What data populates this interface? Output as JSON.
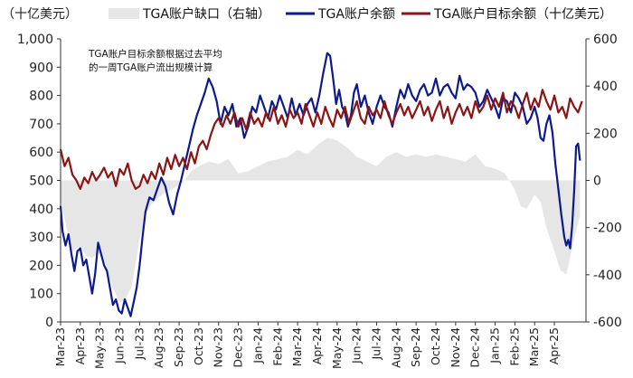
{
  "chart_data": {
    "type": "line",
    "left_axis_unit": "（十亿美元）",
    "ylim_left": [
      0,
      1000
    ],
    "yticks_left": [
      0,
      100,
      200,
      300,
      400,
      500,
      600,
      700,
      800,
      900,
      1000
    ],
    "yticks_left_labels": [
      "0",
      "100",
      "200",
      "300",
      "400",
      "500",
      "600",
      "700",
      "800",
      "900",
      "1,000"
    ],
    "ylim_right": [
      -600,
      600
    ],
    "yticks_right": [
      -600,
      -400,
      -200,
      0,
      200,
      400,
      600
    ],
    "yticks_right_labels": [
      "-600",
      "-400",
      "-200",
      "0",
      "200",
      "400",
      "600"
    ],
    "x_range_month_index": [
      0,
      26.6
    ],
    "x_ticks": [
      {
        "label": "Mar-23",
        "m": 0
      },
      {
        "label": "Apr-23",
        "m": 1
      },
      {
        "label": "May-23",
        "m": 2
      },
      {
        "label": "Jun-23",
        "m": 3
      },
      {
        "label": "Jul-23",
        "m": 4
      },
      {
        "label": "Aug-23",
        "m": 5
      },
      {
        "label": "Sep-23",
        "m": 6
      },
      {
        "label": "Oct-23",
        "m": 7
      },
      {
        "label": "Nov-23",
        "m": 8
      },
      {
        "label": "Dec-23",
        "m": 9
      },
      {
        "label": "Jan-24",
        "m": 10
      },
      {
        "label": "Feb-24",
        "m": 11
      },
      {
        "label": "Mar-24",
        "m": 12
      },
      {
        "label": "Apr-24",
        "m": 13
      },
      {
        "label": "May-24",
        "m": 14
      },
      {
        "label": "Jun-24",
        "m": 15
      },
      {
        "label": "Jul-24",
        "m": 16
      },
      {
        "label": "Aug-24",
        "m": 17
      },
      {
        "label": "Sep-24",
        "m": 18
      },
      {
        "label": "Oct-24",
        "m": 19
      },
      {
        "label": "Nov-24",
        "m": 20
      },
      {
        "label": "Dec-24",
        "m": 21
      },
      {
        "label": "Jan-25",
        "m": 22
      },
      {
        "label": "Feb-25",
        "m": 23
      },
      {
        "label": "Mar-25",
        "m": 24
      },
      {
        "label": "Apr-25",
        "m": 25
      }
    ],
    "annotation": [
      "TGA账户目标余额根据过去平均",
      "的一周TGA账户流出规模计算"
    ],
    "series": [
      {
        "name": "TGA账户缺口（右轴）",
        "type": "area",
        "axis": "right",
        "color": "#e6e6e6",
        "x": [
          0,
          0.3,
          0.6,
          1.0,
          1.3,
          1.6,
          2.0,
          2.3,
          2.6,
          3.0,
          3.3,
          3.6,
          4.0,
          4.3,
          4.6,
          5.0,
          5.3,
          5.6,
          6.0,
          6.3,
          6.6,
          7.0,
          7.5,
          8.0,
          8.5,
          9.0,
          9.5,
          10.0,
          10.5,
          11.0,
          11.5,
          12.0,
          12.5,
          13.0,
          13.5,
          14.0,
          14.5,
          15.0,
          15.5,
          16.0,
          16.5,
          17.0,
          17.5,
          18.0,
          18.5,
          19.0,
          19.5,
          20.0,
          20.5,
          21.0,
          21.5,
          22.0,
          22.5,
          23.0,
          23.3,
          23.6,
          24.0,
          24.3,
          24.6,
          25.0,
          25.3,
          25.6,
          26.0,
          26.3
        ],
        "values": [
          -80,
          -200,
          -300,
          -280,
          -320,
          -330,
          -300,
          -360,
          -450,
          -520,
          -500,
          -450,
          -250,
          -150,
          -100,
          -70,
          -50,
          -40,
          -20,
          0,
          40,
          60,
          80,
          70,
          90,
          30,
          40,
          60,
          80,
          90,
          100,
          130,
          110,
          150,
          180,
          170,
          140,
          100,
          80,
          60,
          100,
          120,
          100,
          110,
          100,
          110,
          100,
          90,
          80,
          110,
          60,
          50,
          30,
          -40,
          -110,
          -120,
          -60,
          -90,
          -200,
          -300,
          -380,
          -400,
          -250,
          -150
        ]
      },
      {
        "name": "TGA账户余额",
        "type": "line",
        "axis": "left",
        "color": "#0d1a8e",
        "x": [
          0,
          0.1,
          0.25,
          0.4,
          0.55,
          0.7,
          0.85,
          1.0,
          1.15,
          1.3,
          1.45,
          1.6,
          1.75,
          1.9,
          2.05,
          2.2,
          2.35,
          2.5,
          2.65,
          2.8,
          2.95,
          3.1,
          3.25,
          3.4,
          3.55,
          3.7,
          3.85,
          4.0,
          4.15,
          4.3,
          4.5,
          4.7,
          4.9,
          5.1,
          5.3,
          5.5,
          5.7,
          5.9,
          6.1,
          6.3,
          6.5,
          6.7,
          6.9,
          7.1,
          7.3,
          7.5,
          7.7,
          7.9,
          8.1,
          8.3,
          8.5,
          8.7,
          8.9,
          9.1,
          9.3,
          9.5,
          9.7,
          9.9,
          10.1,
          10.3,
          10.5,
          10.7,
          10.9,
          11.1,
          11.3,
          11.5,
          11.7,
          11.9,
          12.1,
          12.3,
          12.5,
          12.7,
          12.9,
          13.1,
          13.3,
          13.5,
          13.65,
          13.8,
          13.95,
          14.1,
          14.25,
          14.4,
          14.55,
          14.7,
          14.85,
          15.0,
          15.2,
          15.4,
          15.6,
          15.8,
          16.0,
          16.2,
          16.4,
          16.6,
          16.8,
          17.0,
          17.2,
          17.4,
          17.6,
          17.8,
          18.0,
          18.2,
          18.4,
          18.6,
          18.8,
          19.0,
          19.2,
          19.4,
          19.6,
          19.8,
          20.0,
          20.2,
          20.4,
          20.6,
          20.8,
          21.0,
          21.2,
          21.4,
          21.6,
          21.8,
          22.0,
          22.2,
          22.4,
          22.6,
          22.8,
          23.0,
          23.2,
          23.4,
          23.6,
          23.8,
          24.0,
          24.15,
          24.3,
          24.45,
          24.6,
          24.75,
          24.9,
          25.05,
          25.2,
          25.35,
          25.5,
          25.6,
          25.7,
          25.8,
          25.9,
          26.0,
          26.1,
          26.2,
          26.3
        ],
        "values": [
          410,
          320,
          270,
          310,
          240,
          180,
          250,
          260,
          200,
          220,
          160,
          100,
          170,
          280,
          240,
          200,
          180,
          120,
          60,
          80,
          40,
          30,
          80,
          50,
          20,
          70,
          120,
          200,
          300,
          390,
          440,
          430,
          470,
          510,
          480,
          420,
          380,
          450,
          500,
          560,
          620,
          680,
          730,
          770,
          810,
          860,
          830,
          780,
          700,
          760,
          730,
          770,
          690,
          720,
          650,
          690,
          760,
          740,
          800,
          760,
          720,
          780,
          750,
          800,
          760,
          720,
          790,
          730,
          770,
          730,
          770,
          790,
          740,
          800,
          880,
          950,
          940,
          860,
          770,
          820,
          760,
          740,
          690,
          730,
          810,
          840,
          760,
          800,
          740,
          700,
          760,
          800,
          760,
          740,
          690,
          760,
          820,
          790,
          840,
          800,
          780,
          820,
          840,
          800,
          810,
          860,
          800,
          830,
          840,
          810,
          790,
          870,
          820,
          840,
          830,
          810,
          760,
          780,
          820,
          790,
          760,
          720,
          790,
          780,
          740,
          810,
          790,
          760,
          700,
          720,
          760,
          720,
          650,
          640,
          700,
          730,
          670,
          560,
          470,
          380,
          300,
          270,
          290,
          260,
          340,
          460,
          620,
          630,
          570
        ]
      },
      {
        "name": "TGA账户目标余额（十亿美元）",
        "type": "line",
        "axis": "left",
        "color": "#8b1414",
        "x": [
          0,
          0.2,
          0.4,
          0.6,
          0.8,
          1.0,
          1.2,
          1.4,
          1.6,
          1.8,
          2.0,
          2.2,
          2.4,
          2.6,
          2.8,
          3.0,
          3.2,
          3.4,
          3.6,
          3.8,
          4.0,
          4.2,
          4.4,
          4.6,
          4.8,
          5.0,
          5.2,
          5.4,
          5.6,
          5.8,
          6.0,
          6.2,
          6.4,
          6.6,
          6.8,
          7.0,
          7.2,
          7.4,
          7.6,
          7.8,
          8.0,
          8.2,
          8.4,
          8.6,
          8.8,
          9.0,
          9.2,
          9.4,
          9.6,
          9.8,
          10.0,
          10.2,
          10.4,
          10.6,
          10.8,
          11.0,
          11.2,
          11.4,
          11.6,
          11.8,
          12.0,
          12.2,
          12.4,
          12.6,
          12.8,
          13.0,
          13.2,
          13.4,
          13.6,
          13.8,
          14.0,
          14.2,
          14.4,
          14.6,
          14.8,
          15.0,
          15.2,
          15.4,
          15.6,
          15.8,
          16.0,
          16.2,
          16.4,
          16.6,
          16.8,
          17.0,
          17.2,
          17.4,
          17.6,
          17.8,
          18.0,
          18.2,
          18.4,
          18.6,
          18.8,
          19.0,
          19.2,
          19.4,
          19.6,
          19.8,
          20.0,
          20.2,
          20.4,
          20.6,
          20.8,
          21.0,
          21.2,
          21.4,
          21.6,
          21.8,
          22.0,
          22.2,
          22.4,
          22.6,
          22.8,
          23.0,
          23.2,
          23.4,
          23.6,
          23.8,
          24.0,
          24.2,
          24.4,
          24.6,
          24.8,
          25.0,
          25.2,
          25.4,
          25.6,
          25.8,
          26.0,
          26.2,
          26.4
        ],
        "values": [
          610,
          550,
          580,
          520,
          500,
          470,
          510,
          490,
          530,
          500,
          520,
          545,
          510,
          530,
          480,
          540,
          520,
          560,
          500,
          470,
          480,
          520,
          490,
          530,
          505,
          560,
          520,
          580,
          540,
          590,
          550,
          580,
          540,
          600,
          560,
          620,
          640,
          610,
          660,
          700,
          720,
          690,
          730,
          700,
          740,
          690,
          720,
          680,
          740,
          700,
          720,
          690,
          740,
          710,
          760,
          700,
          730,
          690,
          750,
          720,
          740,
          700,
          770,
          730,
          690,
          740,
          700,
          760,
          720,
          690,
          750,
          720,
          760,
          700,
          740,
          780,
          720,
          700,
          760,
          730,
          750,
          720,
          780,
          730,
          700,
          740,
          770,
          730,
          760,
          720,
          750,
          780,
          730,
          760,
          710,
          750,
          780,
          720,
          760,
          700,
          740,
          770,
          730,
          760,
          720,
          780,
          740,
          760,
          800,
          750,
          790,
          760,
          810,
          740,
          780,
          760,
          720,
          770,
          810,
          750,
          790,
          760,
          820,
          780,
          750,
          800,
          740,
          760,
          720,
          790,
          760,
          740,
          780
        ]
      }
    ]
  }
}
